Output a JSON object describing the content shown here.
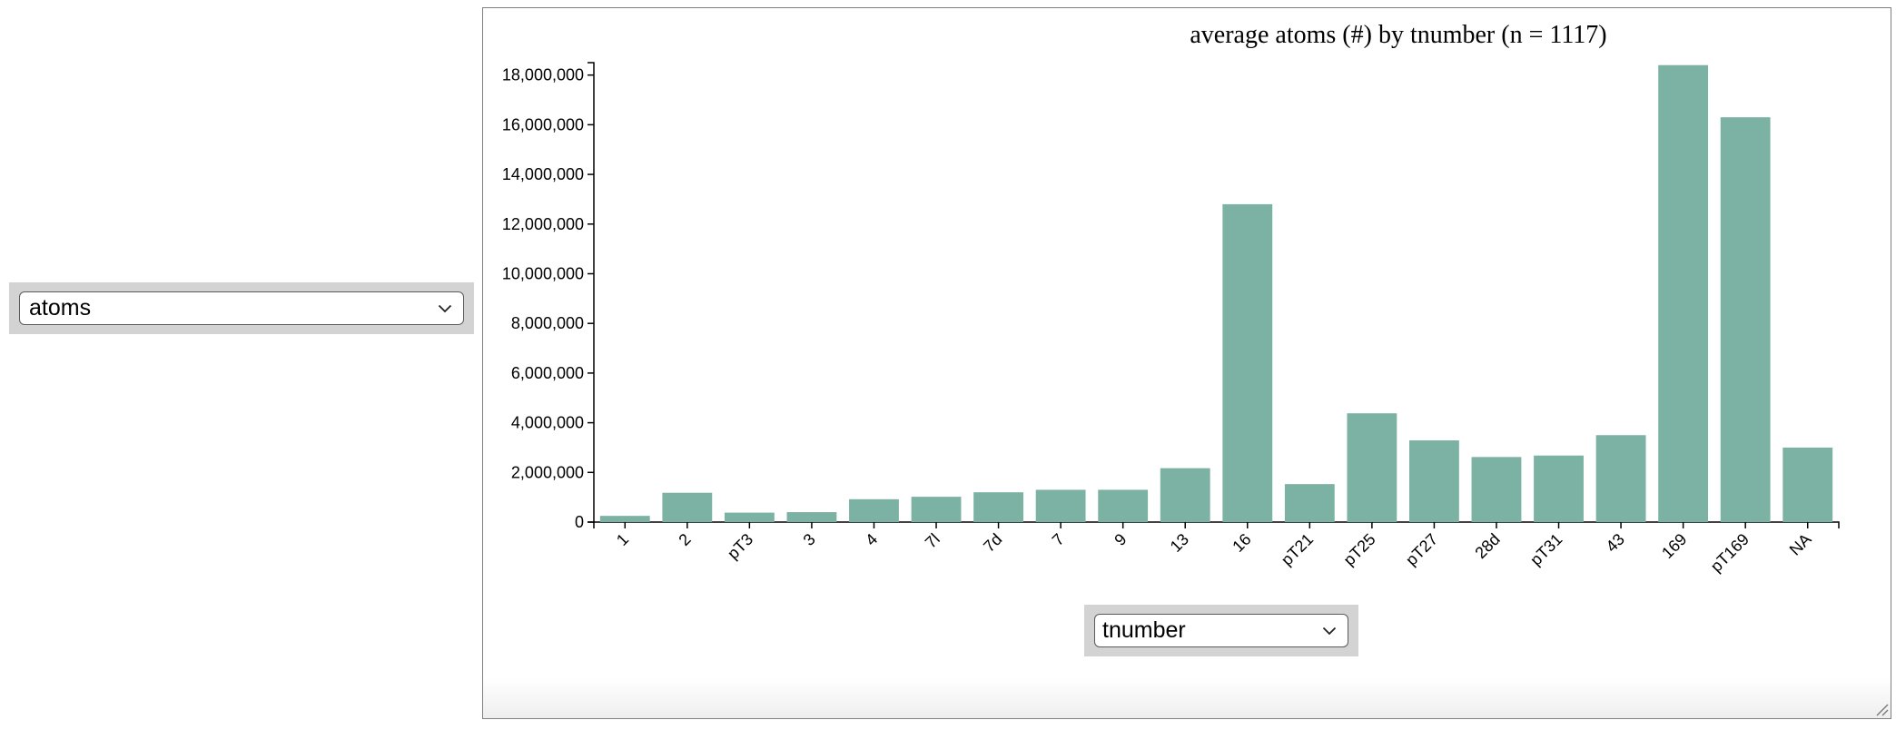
{
  "y_selector": {
    "value": "atoms"
  },
  "x_selector": {
    "value": "tnumber"
  },
  "chart_data": {
    "type": "bar",
    "title": "average atoms (#) by tnumber (n = 1117)",
    "xlabel": "",
    "ylabel": "",
    "ylim": [
      0,
      18500000
    ],
    "yticks": [
      0,
      2000000,
      4000000,
      6000000,
      8000000,
      10000000,
      12000000,
      14000000,
      16000000,
      18000000
    ],
    "ytick_labels": [
      "0",
      "2,000,000",
      "4,000,000",
      "6,000,000",
      "8,000,000",
      "10,000,000",
      "12,000,000",
      "14,000,000",
      "16,000,000",
      "18,000,000"
    ],
    "categories": [
      "1",
      "2",
      "pT3",
      "3",
      "4",
      "7l",
      "7d",
      "7",
      "9",
      "13",
      "16",
      "pT21",
      "pT25",
      "pT27",
      "28d",
      "pT31",
      "43",
      "169",
      "pT169",
      "NA"
    ],
    "values": [
      250000,
      1180000,
      380000,
      400000,
      920000,
      1020000,
      1200000,
      1300000,
      1300000,
      2170000,
      12800000,
      1530000,
      4380000,
      3290000,
      2620000,
      2680000,
      3500000,
      18400000,
      16300000,
      3000000
    ],
    "bar_color": "#7cb2a4",
    "grid": false,
    "legend": "none"
  }
}
